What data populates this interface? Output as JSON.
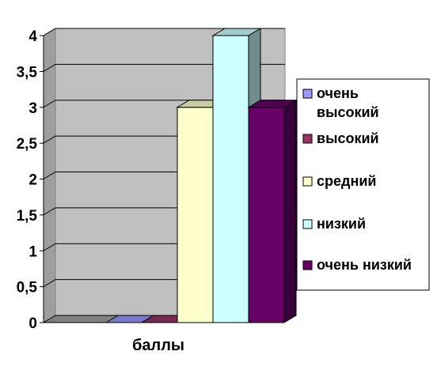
{
  "chart_data": {
    "type": "bar",
    "categories": [
      "баллы"
    ],
    "series": [
      {
        "name": "очень высокий",
        "values": [
          0
        ],
        "color": "#9999FF"
      },
      {
        "name": "высокий",
        "values": [
          0
        ],
        "color": "#993366"
      },
      {
        "name": "средний",
        "values": [
          3
        ],
        "color": "#FFFFCC"
      },
      {
        "name": "низкий",
        "values": [
          4
        ],
        "color": "#CCFFFF"
      },
      {
        "name": "очень низкий",
        "values": [
          3
        ],
        "color": "#660066"
      }
    ],
    "y_ticks": [
      "0",
      "0,5",
      "1",
      "1,5",
      "2",
      "2,5",
      "3",
      "3,5",
      "4"
    ],
    "ylim": [
      0,
      4
    ],
    "grid": true,
    "legend_position": "right",
    "title": "",
    "xlabel": "",
    "ylabel": ""
  }
}
